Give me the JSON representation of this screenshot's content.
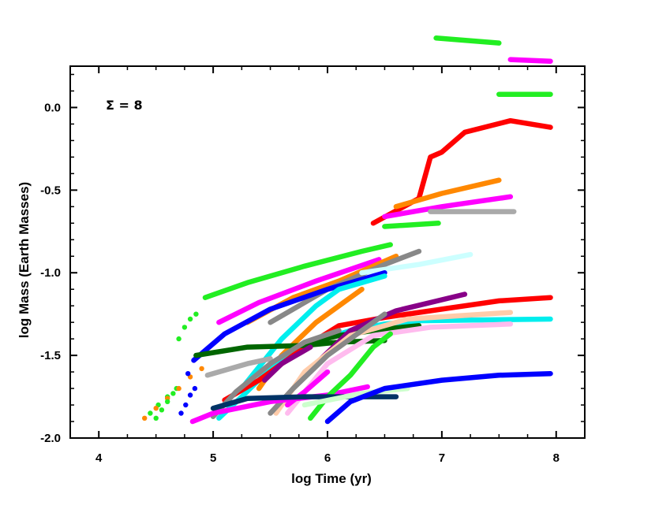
{
  "chart_data": {
    "type": "line",
    "title": "",
    "annotation": "Σ = 8",
    "xlabel": "log Time (yr)",
    "ylabel": "log Mass (Earth Masses)",
    "xlim": [
      3.75,
      8.25
    ],
    "ylim": [
      -2.0,
      0.25
    ],
    "xticks": [
      4,
      5,
      6,
      7,
      8
    ],
    "xtick_labels": [
      "4",
      "5",
      "6",
      "7",
      "8"
    ],
    "yticks": [
      0.0,
      -0.5,
      -1.0,
      -1.5,
      -2.0
    ],
    "ytick_labels": [
      "0.0",
      "-0.5",
      "-1.0",
      "-1.5",
      "-2.0"
    ],
    "grid": false,
    "series": [
      {
        "color": "#ff0000",
        "style": "line",
        "points": [
          [
            6.4,
            -0.7
          ],
          [
            6.8,
            -0.55
          ],
          [
            6.9,
            -0.3
          ],
          [
            7.0,
            -0.27
          ],
          [
            7.2,
            -0.15
          ],
          [
            7.6,
            -0.08
          ],
          [
            7.95,
            -0.12
          ]
        ]
      },
      {
        "color": "#22ee22",
        "style": "line",
        "points": [
          [
            7.5,
            0.08
          ],
          [
            7.95,
            0.08
          ]
        ]
      },
      {
        "color": "#ff00ff",
        "style": "line",
        "points": [
          [
            7.6,
            0.29
          ],
          [
            7.95,
            0.28
          ]
        ]
      },
      {
        "color": "#22ee22",
        "style": "line",
        "points": [
          [
            6.95,
            0.42
          ],
          [
            7.5,
            0.39
          ]
        ]
      },
      {
        "color": "#ff8800",
        "style": "line",
        "points": [
          [
            6.6,
            -0.6
          ],
          [
            7.0,
            -0.52
          ],
          [
            7.5,
            -0.44
          ]
        ]
      },
      {
        "color": "#ff00ff",
        "style": "line",
        "points": [
          [
            6.5,
            -0.66
          ],
          [
            7.0,
            -0.6
          ],
          [
            7.6,
            -0.54
          ]
        ]
      },
      {
        "color": "#aaaaaa",
        "style": "line",
        "points": [
          [
            6.9,
            -0.63
          ],
          [
            7.63,
            -0.63
          ]
        ]
      },
      {
        "color": "#22ee22",
        "style": "line",
        "points": [
          [
            6.5,
            -0.72
          ],
          [
            6.97,
            -0.7
          ]
        ]
      },
      {
        "color": "#22ee22",
        "style": "line",
        "points": [
          [
            4.93,
            -1.15
          ],
          [
            5.3,
            -1.06
          ],
          [
            5.8,
            -0.96
          ],
          [
            6.3,
            -0.87
          ],
          [
            6.55,
            -0.83
          ]
        ]
      },
      {
        "color": "#22ee22",
        "style": "dots",
        "points": [
          [
            4.7,
            -1.4
          ],
          [
            4.75,
            -1.33
          ],
          [
            4.8,
            -1.28
          ],
          [
            4.85,
            -1.25
          ],
          [
            4.68,
            -1.7
          ],
          [
            4.6,
            -1.75
          ],
          [
            4.52,
            -1.8
          ],
          [
            4.45,
            -1.85
          ]
        ]
      },
      {
        "color": "#ff00ff",
        "style": "line",
        "points": [
          [
            5.05,
            -1.3
          ],
          [
            5.4,
            -1.18
          ],
          [
            5.9,
            -1.05
          ],
          [
            6.45,
            -0.92
          ]
        ]
      },
      {
        "color": "#ff8800",
        "style": "line",
        "points": [
          [
            5.3,
            -1.3
          ],
          [
            5.7,
            -1.15
          ],
          [
            6.1,
            -1.05
          ],
          [
            6.6,
            -0.9
          ]
        ]
      },
      {
        "color": "#888888",
        "style": "line",
        "points": [
          [
            5.5,
            -1.3
          ],
          [
            6.0,
            -1.1
          ],
          [
            6.5,
            -0.95
          ],
          [
            6.8,
            -0.87
          ]
        ]
      },
      {
        "color": "#ccffff",
        "style": "line",
        "points": [
          [
            6.3,
            -1.0
          ],
          [
            6.8,
            -0.95
          ],
          [
            7.25,
            -0.89
          ]
        ]
      },
      {
        "color": "#0000ff",
        "style": "line",
        "points": [
          [
            4.83,
            -1.53
          ],
          [
            5.1,
            -1.37
          ],
          [
            5.5,
            -1.22
          ],
          [
            6.0,
            -1.1
          ],
          [
            6.5,
            -1.0
          ]
        ]
      },
      {
        "color": "#ff8800",
        "style": "dots",
        "points": [
          [
            4.4,
            -1.88
          ],
          [
            4.5,
            -1.82
          ],
          [
            4.6,
            -1.76
          ],
          [
            4.7,
            -1.7
          ],
          [
            4.8,
            -1.63
          ],
          [
            4.9,
            -1.58
          ]
        ]
      },
      {
        "color": "#00eeee",
        "style": "line",
        "points": [
          [
            5.25,
            -1.7
          ],
          [
            5.6,
            -1.4
          ],
          [
            5.9,
            -1.2
          ],
          [
            6.1,
            -1.1
          ],
          [
            6.5,
            -1.02
          ]
        ]
      },
      {
        "color": "#ff8800",
        "style": "line",
        "points": [
          [
            5.4,
            -1.7
          ],
          [
            5.6,
            -1.5
          ],
          [
            5.9,
            -1.3
          ],
          [
            6.1,
            -1.2
          ],
          [
            6.3,
            -1.1
          ]
        ]
      },
      {
        "color": "#00eeee",
        "style": "line",
        "points": [
          [
            5.05,
            -1.88
          ],
          [
            5.25,
            -1.75
          ],
          [
            5.5,
            -1.58
          ],
          [
            5.8,
            -1.44
          ],
          [
            6.2,
            -1.35
          ],
          [
            6.5,
            -1.31
          ],
          [
            6.8,
            -1.29
          ],
          [
            7.95,
            -1.28
          ]
        ]
      },
      {
        "color": "#ff0000",
        "style": "line",
        "points": [
          [
            5.1,
            -1.77
          ],
          [
            5.4,
            -1.65
          ],
          [
            5.8,
            -1.45
          ],
          [
            6.1,
            -1.32
          ],
          [
            6.5,
            -1.27
          ],
          [
            7.0,
            -1.22
          ],
          [
            7.5,
            -1.17
          ],
          [
            7.95,
            -1.15
          ]
        ]
      },
      {
        "color": "#006600",
        "style": "line",
        "points": [
          [
            4.85,
            -1.5
          ],
          [
            5.3,
            -1.45
          ],
          [
            5.8,
            -1.44
          ],
          [
            6.1,
            -1.42
          ],
          [
            6.5,
            -1.41
          ]
        ]
      },
      {
        "color": "#006600",
        "style": "line",
        "points": [
          [
            5.7,
            -1.45
          ],
          [
            6.1,
            -1.38
          ],
          [
            6.5,
            -1.34
          ],
          [
            6.8,
            -1.32
          ]
        ]
      },
      {
        "color": "#880088",
        "style": "line",
        "points": [
          [
            5.9,
            -1.55
          ],
          [
            6.2,
            -1.35
          ],
          [
            6.6,
            -1.23
          ],
          [
            7.2,
            -1.13
          ]
        ]
      },
      {
        "color": "#ffccaa",
        "style": "line",
        "points": [
          [
            5.55,
            -1.85
          ],
          [
            5.8,
            -1.6
          ],
          [
            6.2,
            -1.38
          ],
          [
            6.7,
            -1.28
          ],
          [
            7.6,
            -1.24
          ]
        ]
      },
      {
        "color": "#ffbbee",
        "style": "line",
        "points": [
          [
            5.65,
            -1.85
          ],
          [
            6.0,
            -1.55
          ],
          [
            6.4,
            -1.38
          ],
          [
            6.9,
            -1.33
          ],
          [
            7.6,
            -1.31
          ]
        ]
      },
      {
        "color": "#aaaaaa",
        "style": "line",
        "points": [
          [
            4.95,
            -1.62
          ],
          [
            5.3,
            -1.55
          ],
          [
            5.5,
            -1.52
          ]
        ]
      },
      {
        "color": "#888888",
        "style": "line",
        "points": [
          [
            5.5,
            -1.85
          ],
          [
            5.7,
            -1.7
          ],
          [
            6.0,
            -1.5
          ],
          [
            6.3,
            -1.35
          ],
          [
            6.5,
            -1.25
          ]
        ]
      },
      {
        "color": "#888888",
        "style": "line",
        "points": [
          [
            5.0,
            -1.87
          ],
          [
            5.2,
            -1.72
          ],
          [
            5.5,
            -1.55
          ],
          [
            5.8,
            -1.42
          ],
          [
            6.1,
            -1.35
          ]
        ]
      },
      {
        "color": "#ff00ff",
        "style": "line",
        "points": [
          [
            4.82,
            -1.9
          ],
          [
            5.0,
            -1.85
          ],
          [
            5.5,
            -1.78
          ],
          [
            6.0,
            -1.74
          ],
          [
            6.35,
            -1.69
          ]
        ]
      },
      {
        "color": "#ff00ff",
        "style": "line",
        "points": [
          [
            5.65,
            -1.8
          ],
          [
            5.8,
            -1.72
          ],
          [
            6.0,
            -1.6
          ]
        ]
      },
      {
        "color": "#22ee22",
        "style": "line",
        "points": [
          [
            5.85,
            -1.88
          ],
          [
            6.0,
            -1.75
          ],
          [
            6.2,
            -1.62
          ],
          [
            6.4,
            -1.45
          ],
          [
            6.55,
            -1.37
          ]
        ]
      },
      {
        "color": "#003366",
        "style": "line",
        "points": [
          [
            5.0,
            -1.82
          ],
          [
            5.3,
            -1.76
          ],
          [
            5.8,
            -1.75
          ],
          [
            6.6,
            -1.75
          ]
        ]
      },
      {
        "color": "#ccffcc",
        "style": "line",
        "points": [
          [
            5.8,
            -1.8
          ],
          [
            6.3,
            -1.73
          ],
          [
            6.7,
            -1.7
          ]
        ]
      },
      {
        "color": "#0000ff",
        "style": "line",
        "points": [
          [
            6.0,
            -1.9
          ],
          [
            6.2,
            -1.78
          ],
          [
            6.5,
            -1.7
          ],
          [
            7.0,
            -1.65
          ],
          [
            7.5,
            -1.62
          ],
          [
            7.95,
            -1.61
          ]
        ]
      },
      {
        "color": "#0000ff",
        "style": "dots",
        "points": [
          [
            4.72,
            -1.85
          ],
          [
            4.76,
            -1.8
          ],
          [
            4.8,
            -1.74
          ],
          [
            4.84,
            -1.7
          ],
          [
            4.78,
            -1.61
          ]
        ]
      },
      {
        "color": "#22ee22",
        "style": "dots",
        "points": [
          [
            4.5,
            -1.88
          ],
          [
            4.55,
            -1.83
          ],
          [
            4.6,
            -1.78
          ],
          [
            4.65,
            -1.73
          ]
        ]
      },
      {
        "color": "#880088",
        "style": "line",
        "points": [
          [
            5.45,
            -1.65
          ],
          [
            5.6,
            -1.55
          ],
          [
            5.85,
            -1.45
          ]
        ]
      }
    ]
  }
}
